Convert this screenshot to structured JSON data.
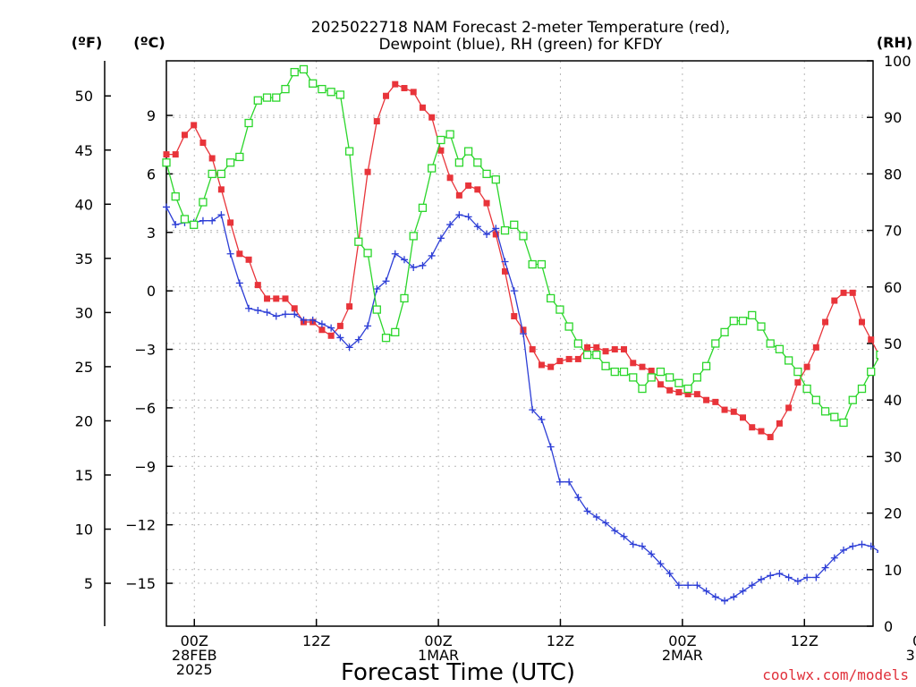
{
  "title": [
    "2025022718 NAM Forecast 2-meter Temperature (red),",
    "Dewpoint (blue), RH (green) for KFDY"
  ],
  "credit": "coolwx.com/models",
  "chart_data": {
    "type": "line",
    "title": "2025022718 NAM Forecast 2-meter Temperature (red), Dewpoint (blue), RH (green) for KFDY",
    "xlabel": "Forecast Time (UTC)",
    "unit_labels": {
      "fahrenheit": "(ºF)",
      "celsius": "(ºC)",
      "rh": "(RH)"
    },
    "x_hours_range": [
      -2.75,
      66.75
    ],
    "y_celsius_range": [
      -17.2,
      11.8
    ],
    "y_rh_range": [
      0,
      100
    ],
    "fahrenheit_ticks": [
      5,
      10,
      15,
      20,
      25,
      30,
      35,
      40,
      45,
      50
    ],
    "celsius_ticks": [
      -15,
      -12,
      -9,
      -6,
      -3,
      0,
      3,
      6,
      9
    ],
    "rh_ticks": [
      0,
      10,
      20,
      30,
      40,
      50,
      60,
      70,
      80,
      90,
      100
    ],
    "x_ticks": [
      {
        "hour": 0,
        "lines": [
          "00Z",
          "28FEB",
          "2025"
        ]
      },
      {
        "hour": 12,
        "lines": [
          "12Z"
        ]
      },
      {
        "hour": 24,
        "lines": [
          "00Z",
          "1MAR"
        ]
      },
      {
        "hour": 36,
        "lines": [
          "12Z"
        ]
      },
      {
        "hour": 48,
        "lines": [
          "00Z",
          "2MAR"
        ]
      },
      {
        "hour": 60,
        "lines": [
          "12Z"
        ]
      },
      {
        "hour": 72,
        "lines": [
          "00Z",
          "3MAR"
        ]
      }
    ],
    "grid": true,
    "series": [
      {
        "name": "Temperature",
        "color": "#e8343a",
        "marker": "filled-square",
        "unit": "celsius",
        "x_start": -2.75,
        "x_step": 0.9,
        "values": [
          7.0,
          7.0,
          8.0,
          8.5,
          7.6,
          6.8,
          5.2,
          3.5,
          1.9,
          1.6,
          0.3,
          -0.4,
          -0.4,
          -0.4,
          -0.9,
          -1.6,
          -1.6,
          -2.0,
          -2.3,
          -1.8,
          -0.8,
          2.5,
          6.1,
          8.7,
          10.0,
          10.6,
          10.4,
          10.2,
          9.4,
          8.9,
          7.2,
          5.8,
          4.9,
          5.4,
          5.2,
          4.5,
          2.9,
          1.0,
          -1.3,
          -2.0,
          -3.0,
          -3.8,
          -3.9,
          -3.6,
          -3.5,
          -3.5,
          -2.9,
          -2.9,
          -3.1,
          -3.0,
          -3.0,
          -3.7,
          -3.9,
          -4.1,
          -4.8,
          -5.1,
          -5.2,
          -5.3,
          -5.3,
          -5.6,
          -5.7,
          -6.1,
          -6.2,
          -6.5,
          -7.0,
          -7.2,
          -7.5,
          -6.8,
          -6.0,
          -4.7,
          -3.9,
          -2.9,
          -1.6,
          -0.5,
          -0.1,
          -0.1,
          -1.6,
          -2.5,
          -3.4,
          -4.0,
          -4.2,
          -4.5,
          -4.9
        ]
      },
      {
        "name": "Dewpoint",
        "color": "#2d3ed6",
        "marker": "plus",
        "unit": "celsius",
        "x_start": -2.75,
        "x_step": 0.9,
        "values": [
          4.3,
          3.4,
          3.5,
          3.5,
          3.6,
          3.6,
          3.9,
          1.9,
          0.4,
          -0.9,
          -1.0,
          -1.1,
          -1.3,
          -1.2,
          -1.2,
          -1.5,
          -1.5,
          -1.7,
          -1.9,
          -2.4,
          -2.9,
          -2.5,
          -1.8,
          0.1,
          0.5,
          1.9,
          1.6,
          1.2,
          1.3,
          1.8,
          2.7,
          3.4,
          3.9,
          3.8,
          3.3,
          2.9,
          3.2,
          1.5,
          0.0,
          -2.2,
          -6.1,
          -6.6,
          -8.0,
          -9.8,
          -9.8,
          -10.6,
          -11.3,
          -11.6,
          -11.9,
          -12.3,
          -12.6,
          -13.0,
          -13.1,
          -13.5,
          -14.0,
          -14.5,
          -15.1,
          -15.1,
          -15.1,
          -15.4,
          -15.7,
          -15.9,
          -15.7,
          -15.4,
          -15.1,
          -14.8,
          -14.6,
          -14.5,
          -14.7,
          -14.9,
          -14.7,
          -14.7,
          -14.2,
          -13.7,
          -13.3,
          -13.1,
          -13.0,
          -13.1,
          -13.4,
          -13.8,
          -13.6,
          -13.9,
          -13.7,
          -13.5,
          -13.3,
          -13.3,
          -13.3,
          -13.2
        ]
      },
      {
        "name": "RH",
        "color": "#2bd62b",
        "marker": "open-square",
        "unit": "rh",
        "x_start": -2.75,
        "x_step": 0.9,
        "values": [
          82,
          76,
          72,
          71,
          75,
          80,
          80,
          82,
          83,
          89,
          93,
          93.5,
          93.5,
          95,
          98,
          98.5,
          96,
          95,
          94.5,
          94,
          84,
          68,
          66,
          56,
          51,
          52,
          58,
          69,
          74,
          81,
          86,
          87,
          82,
          84,
          82,
          80,
          79,
          70,
          71,
          69,
          64,
          64,
          58,
          56,
          53,
          50,
          48,
          48,
          46,
          45,
          45,
          44,
          42,
          44,
          45,
          44,
          43,
          42,
          44,
          46,
          50,
          52,
          54,
          54,
          55,
          53,
          50,
          49,
          47,
          45,
          42,
          40,
          38,
          37,
          36,
          40,
          42,
          45,
          48,
          50,
          51,
          52,
          53
        ]
      }
    ]
  }
}
